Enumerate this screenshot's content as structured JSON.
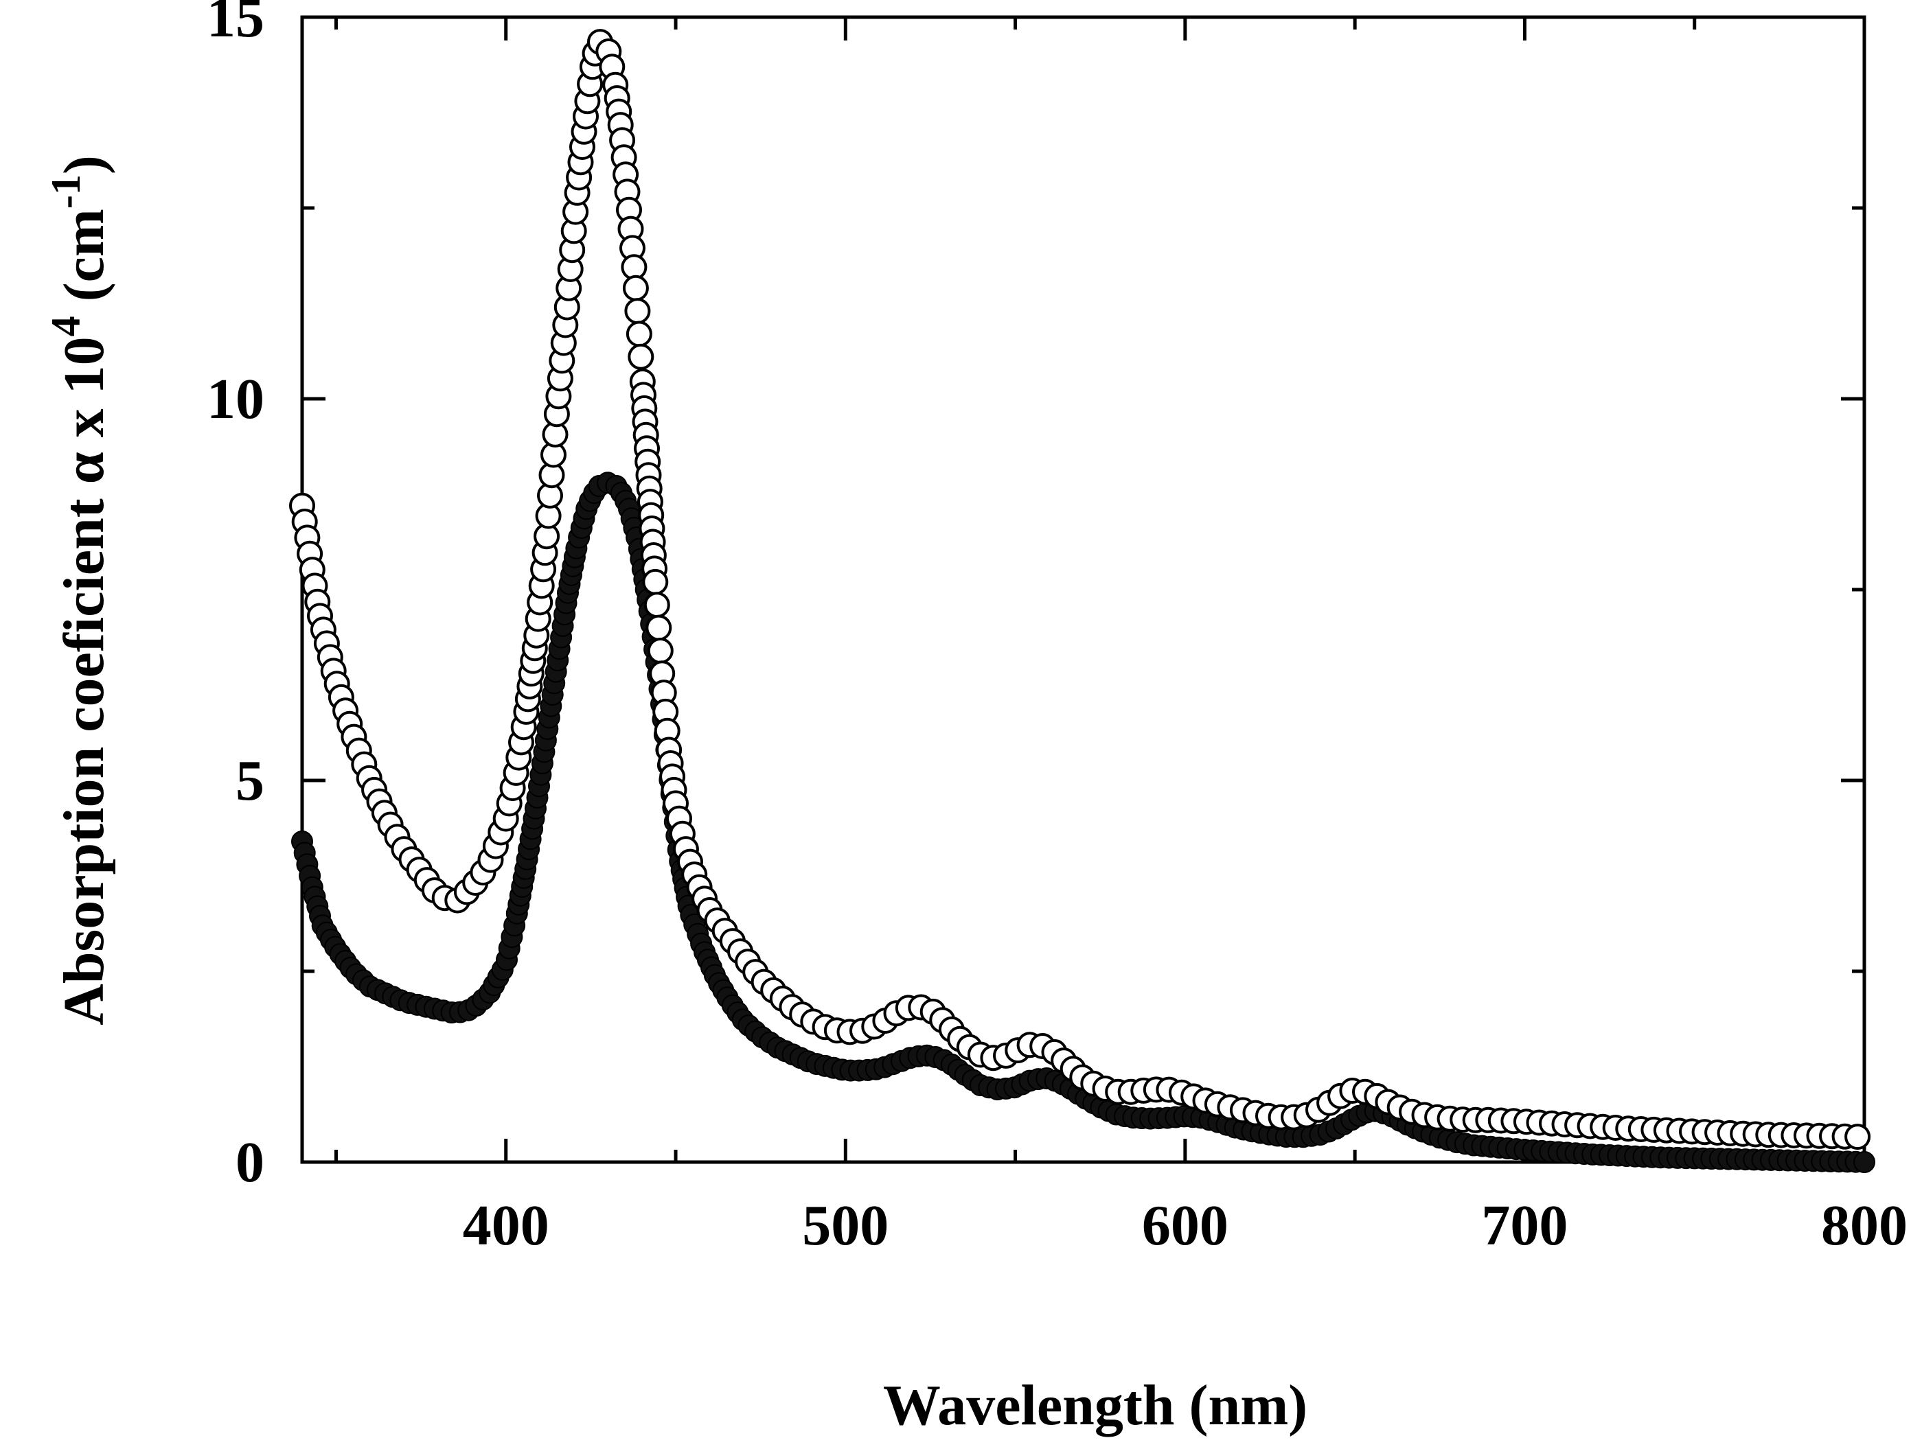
{
  "chart_data": {
    "type": "scatter",
    "title": "",
    "xlabel": "Wavelength (nm)",
    "ylabel": {
      "prefix": "Absorption coeficient ",
      "symbol": "α",
      "middle": " x 10",
      "exp": "4",
      "unit_open": "  (cm",
      "unit_exp": "-1",
      "unit_close": ")"
    },
    "xlim": [
      340,
      800
    ],
    "ylim": [
      0,
      15
    ],
    "xticks": [
      400,
      500,
      600,
      700,
      800
    ],
    "yticks": [
      0,
      5,
      10,
      15
    ],
    "xtick_labels": [
      "400",
      "500",
      "600",
      "700",
      "800"
    ],
    "ytick_labels": [
      "0",
      "5",
      "10",
      "15"
    ],
    "grid": false,
    "legend": "none",
    "series": [
      {
        "name": "open circles",
        "marker": "open-circle",
        "color": "#000000",
        "x": [
          340,
          345,
          350,
          355,
          360,
          365,
          370,
          375,
          380,
          385,
          390,
          395,
          400,
          403,
          406,
          409,
          412,
          415,
          418,
          421,
          424,
          426,
          428,
          430,
          432,
          434,
          436,
          438,
          440,
          442,
          444,
          446,
          448,
          450,
          453,
          456,
          460,
          465,
          470,
          475,
          480,
          485,
          490,
          495,
          500,
          505,
          510,
          515,
          520,
          525,
          530,
          535,
          540,
          545,
          550,
          555,
          560,
          565,
          570,
          575,
          580,
          585,
          590,
          595,
          600,
          605,
          610,
          615,
          620,
          625,
          630,
          635,
          640,
          645,
          650,
          655,
          660,
          665,
          670,
          675,
          680,
          685,
          690,
          695,
          700,
          710,
          720,
          730,
          740,
          750,
          760,
          770,
          780,
          790,
          800
        ],
        "y": [
          8.6,
          7.2,
          6.3,
          5.6,
          5.0,
          4.5,
          4.1,
          3.8,
          3.5,
          3.4,
          3.6,
          3.9,
          4.5,
          5.1,
          5.9,
          6.9,
          8.2,
          9.8,
          11.2,
          12.7,
          13.9,
          14.5,
          14.7,
          14.6,
          14.2,
          13.5,
          12.6,
          11.6,
          10.4,
          9.0,
          7.6,
          6.4,
          5.4,
          4.7,
          4.1,
          3.7,
          3.3,
          3.0,
          2.7,
          2.4,
          2.2,
          2.0,
          1.85,
          1.75,
          1.7,
          1.72,
          1.8,
          1.95,
          2.05,
          2.0,
          1.8,
          1.55,
          1.4,
          1.35,
          1.45,
          1.55,
          1.5,
          1.3,
          1.1,
          0.98,
          0.92,
          0.92,
          0.95,
          0.95,
          0.9,
          0.82,
          0.75,
          0.7,
          0.65,
          0.6,
          0.58,
          0.6,
          0.7,
          0.85,
          0.95,
          0.9,
          0.78,
          0.68,
          0.62,
          0.58,
          0.56,
          0.55,
          0.55,
          0.54,
          0.53,
          0.5,
          0.47,
          0.44,
          0.42,
          0.4,
          0.38,
          0.36,
          0.35,
          0.34,
          0.33
        ]
      },
      {
        "name": "filled circles",
        "marker": "filled-circle",
        "color": "#111111",
        "x": [
          340,
          343,
          346,
          350,
          355,
          360,
          365,
          370,
          375,
          380,
          385,
          390,
          395,
          400,
          403,
          406,
          409,
          412,
          415,
          418,
          421,
          424,
          427,
          430,
          433,
          436,
          439,
          442,
          445,
          448,
          451,
          454,
          458,
          462,
          466,
          470,
          475,
          480,
          485,
          490,
          495,
          500,
          505,
          510,
          515,
          520,
          525,
          530,
          535,
          540,
          545,
          550,
          555,
          560,
          565,
          570,
          575,
          580,
          585,
          590,
          595,
          600,
          605,
          610,
          615,
          620,
          625,
          630,
          635,
          640,
          645,
          650,
          655,
          660,
          665,
          670,
          675,
          680,
          685,
          690,
          695,
          700,
          710,
          720,
          730,
          740,
          750,
          760,
          770,
          780,
          790,
          800
        ],
        "y": [
          4.2,
          3.6,
          3.1,
          2.8,
          2.5,
          2.3,
          2.2,
          2.1,
          2.05,
          2.0,
          1.95,
          2.0,
          2.2,
          2.6,
          3.2,
          3.9,
          4.7,
          5.6,
          6.5,
          7.4,
          8.1,
          8.6,
          8.85,
          8.9,
          8.85,
          8.6,
          8.1,
          7.3,
          6.3,
          5.1,
          4.0,
          3.3,
          2.8,
          2.4,
          2.1,
          1.85,
          1.65,
          1.5,
          1.4,
          1.3,
          1.25,
          1.2,
          1.2,
          1.22,
          1.3,
          1.38,
          1.4,
          1.32,
          1.15,
          1.0,
          0.95,
          0.98,
          1.08,
          1.1,
          1.0,
          0.85,
          0.72,
          0.62,
          0.58,
          0.57,
          0.58,
          0.6,
          0.58,
          0.52,
          0.45,
          0.4,
          0.36,
          0.33,
          0.33,
          0.36,
          0.45,
          0.58,
          0.68,
          0.62,
          0.5,
          0.4,
          0.32,
          0.26,
          0.22,
          0.2,
          0.18,
          0.16,
          0.13,
          0.1,
          0.08,
          0.06,
          0.05,
          0.04,
          0.03,
          0.02,
          0.01,
          0.0
        ]
      }
    ]
  }
}
